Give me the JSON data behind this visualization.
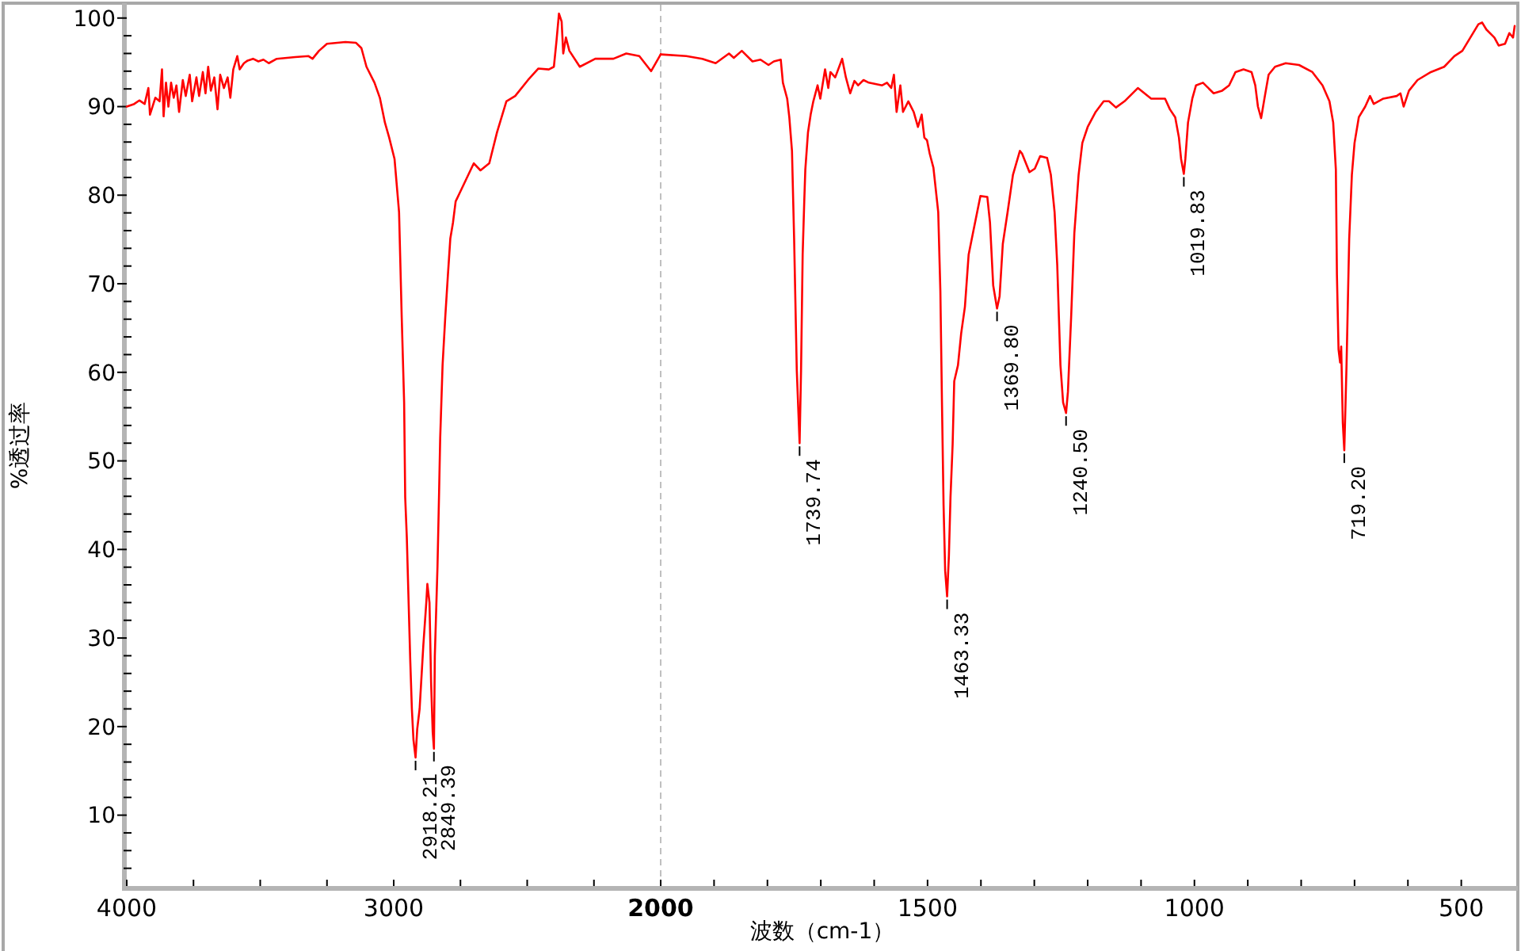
{
  "chart_data": [
    {
      "type": "line",
      "ylabel": "%透过率",
      "color": "#ff0000",
      "xlim": [
        4000,
        2000
      ],
      "ylim": [
        2,
        101.5
      ],
      "xticks": [
        4000,
        {
          "value": 3750,
          "label": null
        },
        {
          "value": 3500,
          "label": null
        },
        {
          "value": 3250,
          "label": null
        },
        3000,
        {
          "value": 2750,
          "label": null
        },
        {
          "value": 2500,
          "label": null
        },
        {
          "value": 2250,
          "label": null
        },
        2000
      ],
      "yticks": [
        {
          "value": 4,
          "label": null
        },
        {
          "value": 6,
          "label": null
        },
        {
          "value": 8,
          "label": null
        },
        10,
        {
          "value": 12,
          "label": null
        },
        {
          "value": 14,
          "label": null
        },
        {
          "value": 16,
          "label": null
        },
        {
          "value": 18,
          "label": null
        },
        20,
        {
          "value": 22,
          "label": null
        },
        {
          "value": 24,
          "label": null
        },
        {
          "value": 26,
          "label": null
        },
        {
          "value": 28,
          "label": null
        },
        30,
        {
          "value": 32,
          "label": null
        },
        {
          "value": 34,
          "label": null
        },
        {
          "value": 36,
          "label": null
        },
        {
          "value": 38,
          "label": null
        },
        40,
        {
          "value": 42,
          "label": null
        },
        {
          "value": 44,
          "label": null
        },
        {
          "value": 46,
          "label": null
        },
        {
          "value": 48,
          "label": null
        },
        50,
        {
          "value": 52,
          "label": null
        },
        {
          "value": 54,
          "label": null
        },
        {
          "value": 56,
          "label": null
        },
        {
          "value": 58,
          "label": null
        },
        60,
        {
          "value": 62,
          "label": null
        },
        {
          "value": 64,
          "label": null
        },
        {
          "value": 66,
          "label": null
        },
        {
          "value": 68,
          "label": null
        },
        70,
        {
          "value": 72,
          "label": null
        },
        {
          "value": 74,
          "label": null
        },
        {
          "value": 76,
          "label": null
        },
        {
          "value": 78,
          "label": null
        },
        80,
        {
          "value": 82,
          "label": null
        },
        {
          "value": 84,
          "label": null
        },
        {
          "value": 86,
          "label": null
        },
        {
          "value": 88,
          "label": null
        },
        90,
        {
          "value": 92,
          "label": null
        },
        {
          "value": 94,
          "label": null
        },
        {
          "value": 96,
          "label": null
        },
        {
          "value": 98,
          "label": null
        },
        100
      ],
      "ref_lines": [
        {
          "axis": "x",
          "value": 2000,
          "color": "#c0c0c0",
          "line_style": "dashed"
        }
      ],
      "annotations": [
        {
          "text": "2918.21",
          "x": 2918.21,
          "y": 16.5
        },
        {
          "text": "2849.39",
          "x": 2849.39,
          "y": 17.5
        }
      ],
      "x": [
        4000,
        3972,
        3953,
        3933,
        3919,
        3913,
        3893,
        3877,
        3868,
        3862,
        3853,
        3844,
        3834,
        3824,
        3814,
        3804,
        3790,
        3779,
        3764,
        3755,
        3739,
        3729,
        3715,
        3705,
        3695,
        3685,
        3672,
        3660,
        3650,
        3636,
        3622,
        3612,
        3601,
        3586,
        3577,
        3561,
        3547,
        3527,
        3507,
        3488,
        3468,
        3438,
        3369,
        3319,
        3304,
        3280,
        3250,
        3181,
        3141,
        3121,
        3102,
        3072,
        3052,
        3033,
        3017,
        2997,
        2980,
        2970,
        2961,
        2957,
        2951,
        2945,
        2938,
        2932,
        2926,
        2918.21,
        2912,
        2903,
        2889,
        2878,
        2874,
        2866,
        2860,
        2854,
        2849.39,
        2846,
        2836,
        2830,
        2826,
        2817,
        2807,
        2797,
        2788,
        2778,
        2768,
        2749,
        2730,
        2700,
        2675,
        2642,
        2613,
        2578,
        2545,
        2497,
        2458,
        2419,
        2400,
        2390,
        2381,
        2371,
        2365,
        2355,
        2342,
        2303,
        2245,
        2177,
        2129,
        2080,
        2036,
        2000
      ],
      "values": [
        90.0,
        90.3,
        90.7,
        90.3,
        92.1,
        89.1,
        91.0,
        90.6,
        94.2,
        88.9,
        92.7,
        90.0,
        92.7,
        91.0,
        92.4,
        89.4,
        93.0,
        91.2,
        93.6,
        90.6,
        93.3,
        91.2,
        93.9,
        91.5,
        94.5,
        91.8,
        93.3,
        89.7,
        93.6,
        92.1,
        93.3,
        91.0,
        94.2,
        95.7,
        94.2,
        94.9,
        95.2,
        95.4,
        95.1,
        95.3,
        94.9,
        95.4,
        95.6,
        95.7,
        95.4,
        96.3,
        97.1,
        97.3,
        97.2,
        96.6,
        94.5,
        92.7,
        91.0,
        88.2,
        86.5,
        84.1,
        78.1,
        66.2,
        56.6,
        45.9,
        41.4,
        34.9,
        27.4,
        22.0,
        18.5,
        16.5,
        19.7,
        22.0,
        29.2,
        34.0,
        36.1,
        34.0,
        25.0,
        19.4,
        17.5,
        28.0,
        38.1,
        46.5,
        52.5,
        60.8,
        66.2,
        71.0,
        75.1,
        76.9,
        79.3,
        80.5,
        81.7,
        83.6,
        82.8,
        83.6,
        87.1,
        90.6,
        91.2,
        93.0,
        94.3,
        94.2,
        94.5,
        97.5,
        100.5,
        99.6,
        96.0,
        97.8,
        96.3,
        94.5,
        95.4,
        95.4,
        96.0,
        95.7,
        94.0,
        95.9
      ]
    },
    {
      "type": "line",
      "xlabel": "波数（cm-1）",
      "color": "#ff0000",
      "tick_labels": "x",
      "xlim": [
        2000,
        400
      ],
      "ylim": [
        2,
        101.5
      ],
      "xticks": [
        {
          "value": 1900,
          "label": null
        },
        {
          "value": 1800,
          "label": null
        },
        {
          "value": 1700,
          "label": null
        },
        {
          "value": 1600,
          "label": null
        },
        1500,
        {
          "value": 1400,
          "label": null
        },
        {
          "value": 1300,
          "label": null
        },
        {
          "value": 1200,
          "label": null
        },
        {
          "value": 1100,
          "label": null
        },
        1000,
        {
          "value": 900,
          "label": null
        },
        {
          "value": 800,
          "label": null
        },
        {
          "value": 700,
          "label": null
        },
        {
          "value": 600,
          "label": null
        },
        500
      ],
      "annotations": [
        {
          "text": "1739.74",
          "x": 1739.74,
          "y": 52.0
        },
        {
          "text": "1463.33",
          "x": 1463.33,
          "y": 34.7
        },
        {
          "text": "1369.80",
          "x": 1369.8,
          "y": 67.2
        },
        {
          "text": "1240.50",
          "x": 1240.5,
          "y": 55.4
        },
        {
          "text": "1019.83",
          "x": 1019.83,
          "y": 82.4
        },
        {
          "text": "719.20",
          "x": 719.2,
          "y": 51.2
        }
      ],
      "x": [
        2000,
        1952,
        1922,
        1897,
        1872,
        1863,
        1848,
        1828,
        1813,
        1798,
        1788,
        1775,
        1771,
        1763,
        1759,
        1754,
        1750,
        1745,
        1739.74,
        1737,
        1734,
        1731,
        1729,
        1724,
        1719,
        1714,
        1706,
        1701,
        1692,
        1686,
        1682,
        1673,
        1660,
        1653,
        1645,
        1637,
        1630,
        1620,
        1610,
        1585,
        1576,
        1568,
        1563,
        1558,
        1551,
        1546,
        1536,
        1526,
        1518,
        1511,
        1506,
        1501,
        1496,
        1489,
        1480,
        1476,
        1473,
        1470,
        1467,
        1463.33,
        1460,
        1457,
        1453,
        1450,
        1443,
        1437,
        1430,
        1423,
        1415,
        1407,
        1401,
        1388,
        1383,
        1377,
        1369.8,
        1365,
        1359,
        1350,
        1340,
        1327,
        1323,
        1309,
        1299,
        1289,
        1276,
        1269,
        1262,
        1257,
        1251,
        1246,
        1240.5,
        1237,
        1231,
        1225,
        1217,
        1210,
        1200,
        1185,
        1170,
        1160,
        1147,
        1131,
        1106,
        1081,
        1055,
        1046,
        1036,
        1029,
        1025,
        1019.83,
        1017,
        1012,
        1004,
        997,
        984,
        964,
        948,
        935,
        923,
        908,
        893,
        886,
        881,
        875,
        868,
        861,
        849,
        829,
        804,
        779,
        760,
        747,
        740,
        735,
        733,
        730,
        727,
        725,
        722,
        719.2,
        715,
        710,
        705,
        700,
        692,
        680,
        671,
        664,
        646,
        621,
        614,
        608,
        598,
        582,
        557,
        532,
        513,
        498,
        483,
        468,
        461,
        453,
        438,
        430,
        418,
        410,
        403,
        400
      ],
      "values": [
        95.9,
        95.7,
        95.4,
        94.9,
        96.0,
        95.5,
        96.3,
        95.1,
        95.3,
        94.7,
        95.1,
        95.3,
        92.7,
        90.9,
        88.8,
        85.0,
        75.1,
        60.2,
        52.0,
        60.2,
        73.3,
        79.3,
        82.9,
        87.1,
        89.1,
        90.6,
        92.4,
        90.9,
        94.2,
        92.1,
        93.9,
        93.3,
        95.4,
        93.3,
        91.5,
        92.9,
        92.4,
        93.0,
        92.7,
        92.4,
        92.7,
        92.1,
        93.6,
        89.4,
        92.4,
        89.4,
        90.6,
        89.4,
        87.7,
        89.1,
        86.5,
        86.2,
        84.7,
        83.1,
        78.1,
        69.2,
        56.6,
        45.0,
        37.6,
        34.7,
        39.3,
        45.9,
        51.9,
        59.0,
        60.8,
        64.4,
        67.4,
        73.3,
        75.7,
        78.1,
        79.9,
        79.8,
        76.9,
        69.8,
        67.2,
        68.6,
        74.5,
        78.1,
        82.3,
        85.0,
        84.7,
        82.6,
        83.0,
        84.4,
        84.2,
        82.3,
        78.1,
        72.1,
        60.8,
        56.6,
        55.4,
        57.8,
        66.2,
        75.7,
        82.3,
        85.9,
        87.7,
        89.4,
        90.6,
        90.6,
        89.9,
        90.6,
        92.1,
        90.9,
        90.9,
        89.7,
        88.8,
        86.5,
        84.1,
        82.4,
        84.1,
        88.2,
        90.9,
        92.4,
        92.7,
        91.5,
        91.8,
        92.4,
        93.9,
        94.2,
        93.9,
        92.4,
        90.0,
        88.7,
        91.2,
        93.6,
        94.5,
        94.9,
        94.7,
        93.9,
        92.4,
        90.6,
        88.2,
        82.9,
        71.0,
        62.6,
        61.1,
        62.9,
        54.3,
        51.2,
        60.8,
        75.1,
        82.3,
        85.9,
        88.8,
        90.0,
        91.2,
        90.3,
        90.9,
        91.2,
        91.5,
        90.0,
        91.8,
        93.0,
        93.9,
        94.5,
        95.7,
        96.3,
        97.8,
        99.3,
        99.5,
        98.7,
        97.8,
        96.9,
        97.1,
        98.3,
        97.8,
        99.1
      ]
    }
  ]
}
